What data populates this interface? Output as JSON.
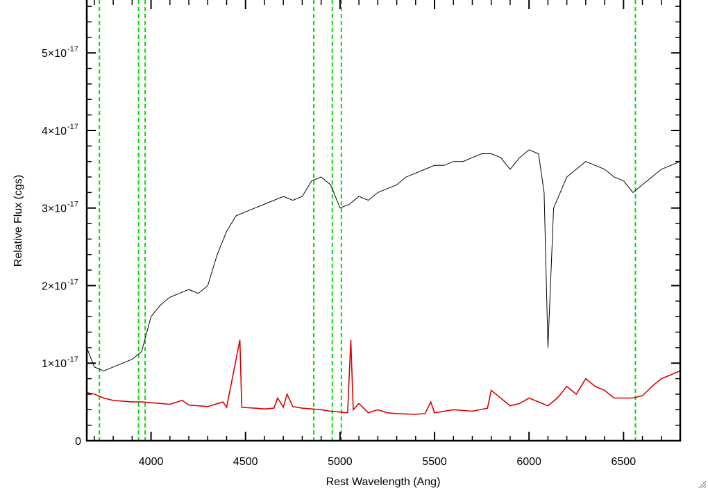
{
  "chart_data": {
    "type": "line",
    "xlabel": "Rest Wavelength (Ang)",
    "ylabel": "Relative Flux (cgs)",
    "xlim": [
      3660,
      6800
    ],
    "ylim": [
      0,
      5.7e-17
    ],
    "x_ticks": [
      {
        "value": 4000,
        "label": "4000"
      },
      {
        "value": 4500,
        "label": "4500"
      },
      {
        "value": 5000,
        "label": "5000"
      },
      {
        "value": 5500,
        "label": "5500"
      },
      {
        "value": 6000,
        "label": "6000"
      },
      {
        "value": 6500,
        "label": "6500"
      }
    ],
    "y_ticks": [
      {
        "value": 0,
        "label": "0",
        "exponent": ""
      },
      {
        "value": 1e-17,
        "label": "1×10",
        "exponent": "-17"
      },
      {
        "value": 2e-17,
        "label": "2×10",
        "exponent": "-17"
      },
      {
        "value": 3e-17,
        "label": "3×10",
        "exponent": "-17"
      },
      {
        "value": 4e-17,
        "label": "4×10",
        "exponent": "-17"
      },
      {
        "value": 5e-17,
        "label": "5×10",
        "exponent": "-17"
      }
    ],
    "vertical_markers": {
      "color": "#00dd00",
      "style": "dashed",
      "x": [
        3727,
        3934,
        3969,
        4861,
        4959,
        5007,
        6563
      ]
    },
    "series": [
      {
        "color": "#000000",
        "values": [
          [
            3660,
            1.2e-17
          ],
          [
            3700,
            9.5e-18
          ],
          [
            3750,
            9e-18
          ],
          [
            3800,
            9.5e-18
          ],
          [
            3850,
            1e-17
          ],
          [
            3900,
            1.05e-17
          ],
          [
            3950,
            1.15e-17
          ],
          [
            4000,
            1.6e-17
          ],
          [
            4050,
            1.75e-17
          ],
          [
            4100,
            1.85e-17
          ],
          [
            4150,
            1.9e-17
          ],
          [
            4200,
            1.95e-17
          ],
          [
            4250,
            1.9e-17
          ],
          [
            4300,
            2e-17
          ],
          [
            4350,
            2.4e-17
          ],
          [
            4400,
            2.7e-17
          ],
          [
            4450,
            2.9e-17
          ],
          [
            4500,
            2.95e-17
          ],
          [
            4550,
            3e-17
          ],
          [
            4600,
            3.05e-17
          ],
          [
            4650,
            3.1e-17
          ],
          [
            4700,
            3.15e-17
          ],
          [
            4750,
            3.1e-17
          ],
          [
            4800,
            3.15e-17
          ],
          [
            4850,
            3.35e-17
          ],
          [
            4900,
            3.4e-17
          ],
          [
            4950,
            3.3e-17
          ],
          [
            5000,
            3e-17
          ],
          [
            5050,
            3.05e-17
          ],
          [
            5100,
            3.15e-17
          ],
          [
            5150,
            3.1e-17
          ],
          [
            5200,
            3.2e-17
          ],
          [
            5250,
            3.25e-17
          ],
          [
            5300,
            3.3e-17
          ],
          [
            5350,
            3.4e-17
          ],
          [
            5400,
            3.45e-17
          ],
          [
            5450,
            3.5e-17
          ],
          [
            5500,
            3.55e-17
          ],
          [
            5550,
            3.55e-17
          ],
          [
            5600,
            3.6e-17
          ],
          [
            5650,
            3.6e-17
          ],
          [
            5700,
            3.65e-17
          ],
          [
            5750,
            3.7e-17
          ],
          [
            5800,
            3.7e-17
          ],
          [
            5850,
            3.65e-17
          ],
          [
            5900,
            3.5e-17
          ],
          [
            5950,
            3.65e-17
          ],
          [
            6000,
            3.75e-17
          ],
          [
            6050,
            3.7e-17
          ],
          [
            6080,
            3.2e-17
          ],
          [
            6100,
            1.2e-17
          ],
          [
            6130,
            3e-17
          ],
          [
            6200,
            3.4e-17
          ],
          [
            6250,
            3.5e-17
          ],
          [
            6300,
            3.6e-17
          ],
          [
            6350,
            3.55e-17
          ],
          [
            6400,
            3.5e-17
          ],
          [
            6450,
            3.4e-17
          ],
          [
            6500,
            3.35e-17
          ],
          [
            6550,
            3.2e-17
          ],
          [
            6600,
            3.3e-17
          ],
          [
            6650,
            3.4e-17
          ],
          [
            6700,
            3.5e-17
          ],
          [
            6750,
            3.55e-17
          ],
          [
            6800,
            3.6e-17
          ]
        ]
      },
      {
        "color": "#dd0000",
        "values": [
          [
            3660,
            6.2e-18
          ],
          [
            3700,
            6e-18
          ],
          [
            3750,
            5.5e-18
          ],
          [
            3800,
            5.2e-18
          ],
          [
            3850,
            5.1e-18
          ],
          [
            3900,
            5e-18
          ],
          [
            3950,
            5e-18
          ],
          [
            4000,
            4.9e-18
          ],
          [
            4100,
            4.7e-18
          ],
          [
            4165,
            5.2e-18
          ],
          [
            4200,
            4.6e-18
          ],
          [
            4300,
            4.4e-18
          ],
          [
            4380,
            5e-18
          ],
          [
            4400,
            4.3e-18
          ],
          [
            4470,
            1.3e-17
          ],
          [
            4480,
            4.3e-18
          ],
          [
            4550,
            4.2e-18
          ],
          [
            4600,
            4.1e-18
          ],
          [
            4650,
            4.2e-18
          ],
          [
            4670,
            5.5e-18
          ],
          [
            4700,
            4.3e-18
          ],
          [
            4720,
            6e-18
          ],
          [
            4750,
            4.4e-18
          ],
          [
            4800,
            4.2e-18
          ],
          [
            4850,
            4.1e-18
          ],
          [
            4900,
            4e-18
          ],
          [
            4950,
            3.8e-18
          ],
          [
            5000,
            3.7e-18
          ],
          [
            5040,
            3.6e-18
          ],
          [
            5057,
            1.3e-17
          ],
          [
            5070,
            4e-18
          ],
          [
            5100,
            4.8e-18
          ],
          [
            5150,
            3.6e-18
          ],
          [
            5200,
            4e-18
          ],
          [
            5250,
            3.6e-18
          ],
          [
            5300,
            3.5e-18
          ],
          [
            5400,
            3.4e-18
          ],
          [
            5450,
            3.5e-18
          ],
          [
            5480,
            5e-18
          ],
          [
            5500,
            3.6e-18
          ],
          [
            5600,
            4e-18
          ],
          [
            5700,
            3.8e-18
          ],
          [
            5780,
            4.2e-18
          ],
          [
            5800,
            6.5e-18
          ],
          [
            5850,
            5.5e-18
          ],
          [
            5900,
            4.5e-18
          ],
          [
            5950,
            4.8e-18
          ],
          [
            6000,
            5.5e-18
          ],
          [
            6050,
            5e-18
          ],
          [
            6100,
            4.5e-18
          ],
          [
            6150,
            5.5e-18
          ],
          [
            6200,
            7e-18
          ],
          [
            6250,
            6e-18
          ],
          [
            6300,
            8e-18
          ],
          [
            6350,
            7e-18
          ],
          [
            6400,
            6.5e-18
          ],
          [
            6450,
            5.5e-18
          ],
          [
            6500,
            5.5e-18
          ],
          [
            6550,
            5.5e-18
          ],
          [
            6600,
            5.8e-18
          ],
          [
            6650,
            7e-18
          ],
          [
            6700,
            8e-18
          ],
          [
            6750,
            8.5e-18
          ],
          [
            6800,
            9e-18
          ]
        ]
      }
    ]
  }
}
